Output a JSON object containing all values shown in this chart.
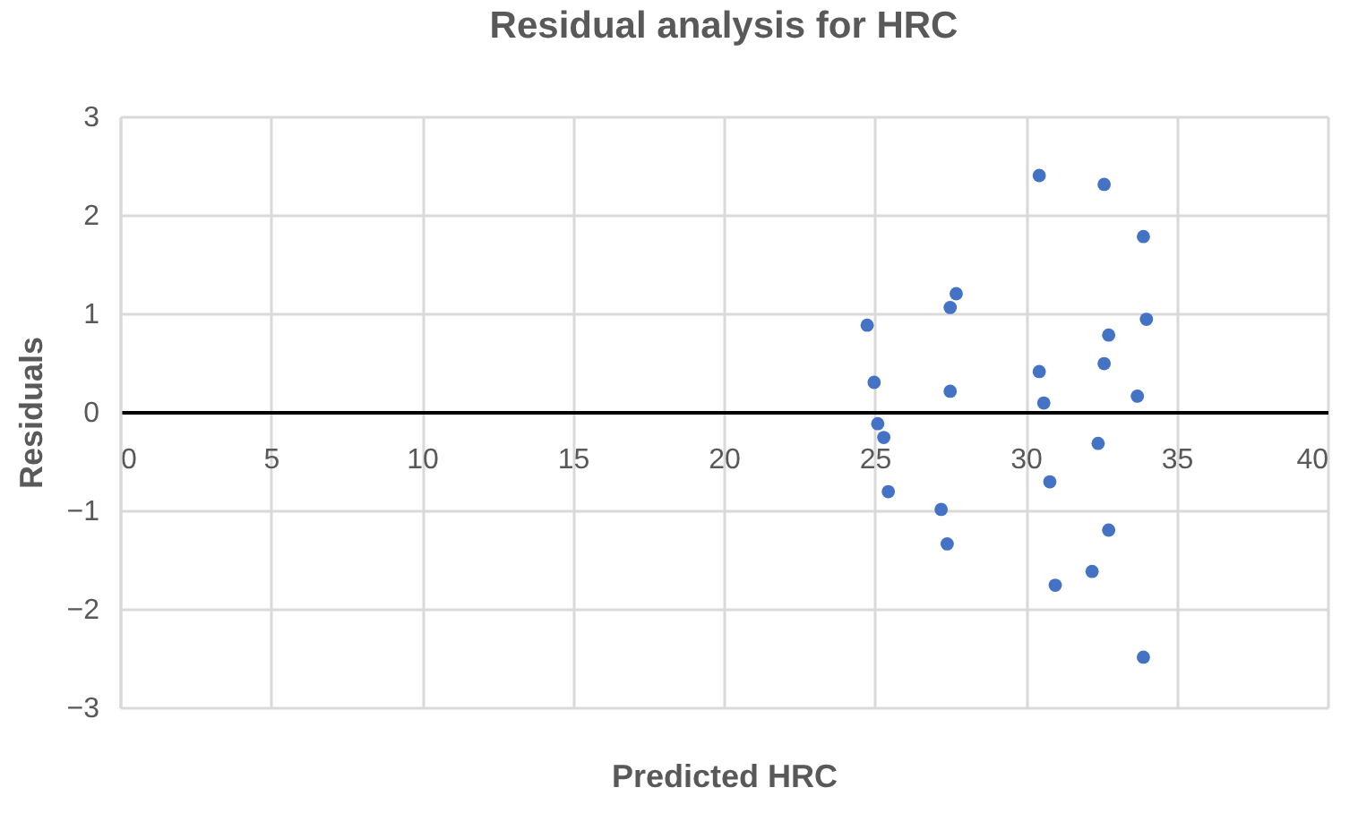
{
  "chart_data": {
    "type": "scatter",
    "title": "Residual analysis for HRC",
    "xlabel": "Predicted HRC",
    "ylabel": "Residuals",
    "x": [
      24.75,
      24.98,
      25.1,
      25.3,
      25.45,
      27.2,
      27.4,
      27.5,
      27.7,
      27.5,
      30.45,
      30.45,
      30.6,
      30.8,
      30.98,
      32.6,
      32.6,
      32.75,
      32.4,
      32.2,
      32.75,
      33.9,
      34.0,
      33.7,
      33.9
    ],
    "series": [
      {
        "color": "#4472c4",
        "values": [
          0.88,
          0.3,
          -0.12,
          -0.26,
          -0.81,
          -0.99,
          -1.34,
          1.06,
          1.2,
          0.21,
          2.4,
          0.41,
          0.09,
          -0.71,
          -1.76,
          2.31,
          0.49,
          0.78,
          -0.32,
          -1.62,
          -1.2,
          1.78,
          0.94,
          0.16,
          -2.49
        ]
      }
    ],
    "xlim": [
      0,
      40
    ],
    "xticks": [
      0,
      5,
      10,
      15,
      20,
      25,
      30,
      35,
      40
    ],
    "ylim": [
      -3,
      3
    ],
    "yticks": [
      -3,
      -2,
      -1,
      0,
      1,
      2,
      3
    ],
    "grid": true,
    "legend": false,
    "marker": "circle"
  }
}
